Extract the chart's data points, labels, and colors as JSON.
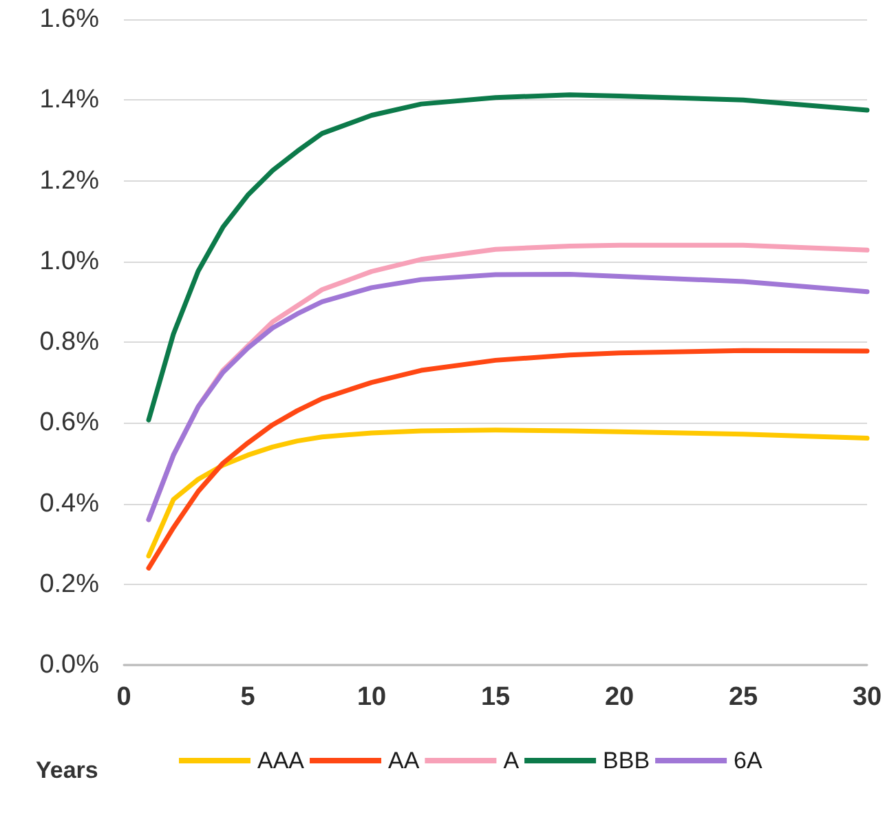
{
  "chart_data": {
    "type": "line",
    "xlabel": "Years",
    "x": [
      1,
      2,
      3,
      4,
      5,
      6,
      7,
      8,
      10,
      12,
      15,
      18,
      20,
      25,
      30
    ],
    "series": [
      {
        "name": "AAA",
        "color": "#ffc800",
        "values": [
          0.27,
          0.41,
          0.46,
          0.495,
          0.52,
          0.54,
          0.555,
          0.565,
          0.575,
          0.58,
          0.582,
          0.58,
          0.578,
          0.572,
          0.562
        ]
      },
      {
        "name": "AA",
        "color": "#ff4713",
        "values": [
          0.24,
          0.34,
          0.43,
          0.5,
          0.55,
          0.595,
          0.63,
          0.66,
          0.7,
          0.73,
          0.755,
          0.768,
          0.773,
          0.779,
          0.778
        ]
      },
      {
        "name": "A",
        "color": "#f7a1b8",
        "values": [
          0.36,
          0.52,
          0.64,
          0.73,
          0.79,
          0.85,
          0.89,
          0.93,
          0.975,
          1.005,
          1.03,
          1.038,
          1.04,
          1.04,
          1.028
        ]
      },
      {
        "name": "BBB",
        "color": "#0c7a4a",
        "values": [
          0.607,
          0.82,
          0.976,
          1.085,
          1.164,
          1.225,
          1.273,
          1.317,
          1.362,
          1.39,
          1.406,
          1.413,
          1.41,
          1.4,
          1.375
        ]
      },
      {
        "name": "6A",
        "color": "#a077d6",
        "values": [
          0.36,
          0.52,
          0.64,
          0.725,
          0.785,
          0.835,
          0.87,
          0.9,
          0.935,
          0.955,
          0.967,
          0.968,
          0.963,
          0.95,
          0.925
        ]
      }
    ],
    "xlim": [
      0,
      30
    ],
    "xticks": [
      0,
      5,
      10,
      15,
      20,
      25,
      30
    ],
    "ylim": [
      0,
      1.6
    ],
    "yticks": [
      {
        "value": 0,
        "label": "0.0%"
      },
      {
        "value": 0.2,
        "label": "0.2%"
      },
      {
        "value": 0.4,
        "label": "0.4%"
      },
      {
        "value": 0.6,
        "label": "0.6%"
      },
      {
        "value": 0.8,
        "label": "0.8%"
      },
      {
        "value": 1.0,
        "label": "1.0%"
      },
      {
        "value": 1.2,
        "label": "1.2%"
      },
      {
        "value": 1.4,
        "label": "1.4%"
      },
      {
        "value": 1.6,
        "label": "1.6%"
      }
    ],
    "grid": "y",
    "legend": "bottom",
    "marker": "none",
    "line_style": "solid"
  }
}
